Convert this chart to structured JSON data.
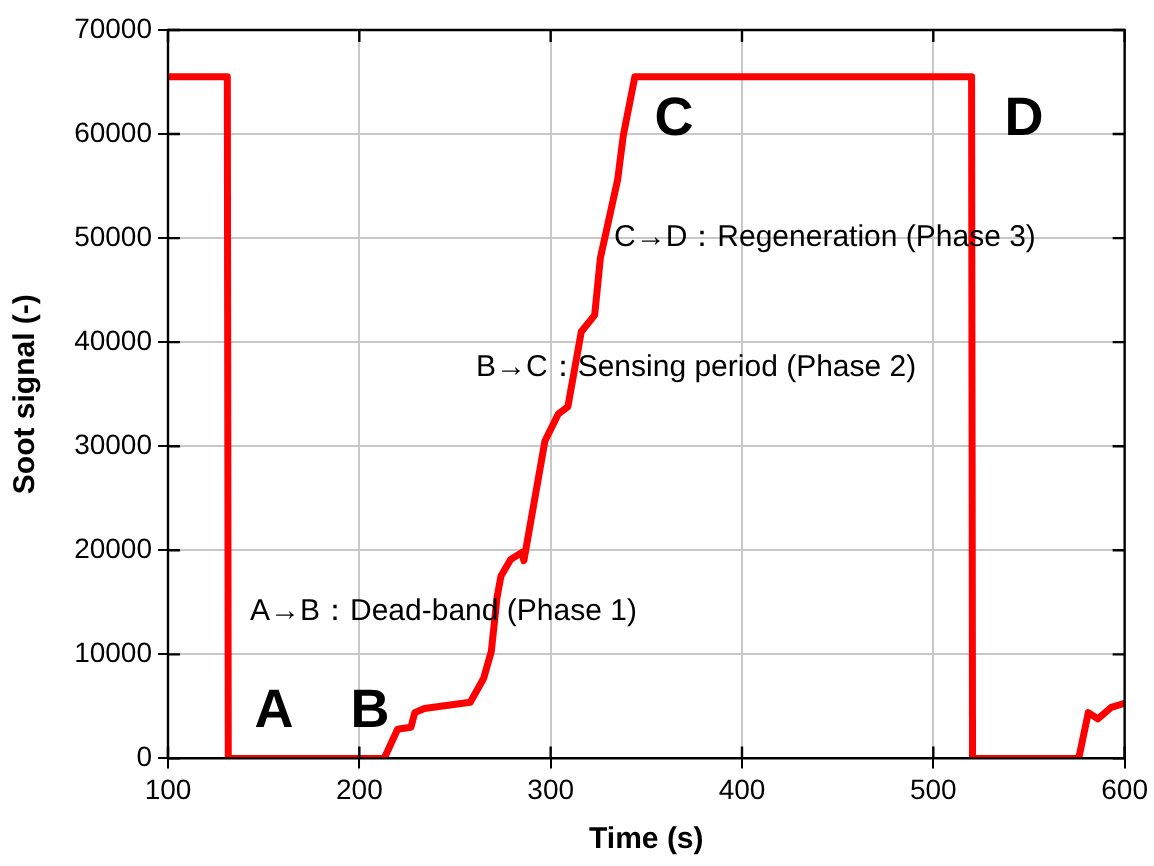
{
  "chart_data": {
    "type": "line",
    "xlabel": "Time (s)",
    "ylabel": "Soot signal (-)",
    "xlim": [
      100,
      600
    ],
    "xticks": [
      100,
      200,
      300,
      400,
      500,
      600
    ],
    "ylim": [
      0,
      70000
    ],
    "yticks": [
      0,
      10000,
      20000,
      30000,
      40000,
      50000,
      60000,
      70000
    ],
    "grid": true,
    "legend": false,
    "marker": "none",
    "line_style": "solid",
    "series": [
      {
        "color": "#ff0000",
        "x": [
          100,
          131,
          131.5,
          213,
          220,
          227,
          229,
          234,
          258,
          265,
          269,
          272,
          274,
          279,
          285,
          286,
          297,
          304,
          309,
          316,
          323,
          326,
          335,
          338,
          344,
          520,
          520.5,
          576,
          581,
          586,
          593,
          600
        ],
        "values": [
          65500,
          65500,
          0,
          0,
          2800,
          3000,
          4400,
          4800,
          5400,
          7700,
          10300,
          15500,
          17500,
          19100,
          19800,
          19000,
          30500,
          33100,
          33800,
          41000,
          42600,
          48100,
          55600,
          59900,
          65500,
          65500,
          0,
          0,
          4400,
          3800,
          4900,
          5300
        ]
      }
    ],
    "annotations": [
      "A",
      "B",
      "C",
      "D",
      "A→B：Dead-band (Phase 1)",
      "B→C：Sensing period (Phase 2)",
      "C→D：Regeneration (Phase 3)"
    ]
  }
}
